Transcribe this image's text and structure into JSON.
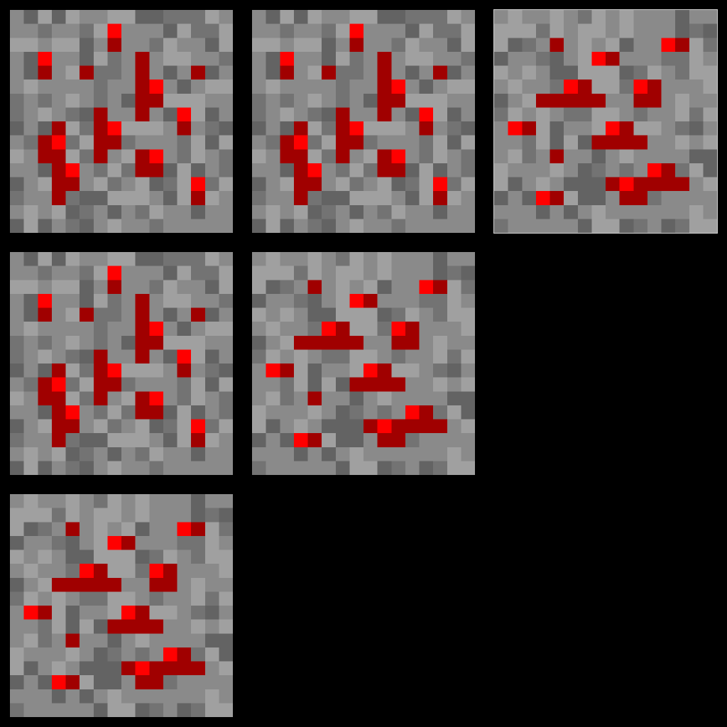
{
  "background_color": "#000000",
  "palette": {
    "light": "#a0a0a0",
    "mid": "#8a8a8a",
    "dark": "#737373",
    "darker": "#636363",
    "ore_bright": "#ff0000",
    "ore_dark": "#a00000"
  },
  "tiles": [
    {
      "name": "redstone-ore-texture-vertical",
      "variant": "vertical",
      "ore": [
        [
          7,
          1,
          "b"
        ],
        [
          7,
          2,
          "d"
        ],
        [
          2,
          3,
          "b"
        ],
        [
          2,
          4,
          "d"
        ],
        [
          5,
          4,
          "d"
        ],
        [
          9,
          3,
          "d"
        ],
        [
          9,
          4,
          "d"
        ],
        [
          13,
          4,
          "d"
        ],
        [
          9,
          5,
          "d"
        ],
        [
          10,
          5,
          "b"
        ],
        [
          9,
          6,
          "d"
        ],
        [
          10,
          6,
          "d"
        ],
        [
          9,
          7,
          "d"
        ],
        [
          6,
          7,
          "d"
        ],
        [
          12,
          7,
          "b"
        ],
        [
          6,
          8,
          "d"
        ],
        [
          7,
          8,
          "b"
        ],
        [
          12,
          8,
          "d"
        ],
        [
          3,
          8,
          "d"
        ],
        [
          2,
          9,
          "d"
        ],
        [
          3,
          9,
          "b"
        ],
        [
          6,
          9,
          "d"
        ],
        [
          7,
          9,
          "d"
        ],
        [
          2,
          10,
          "d"
        ],
        [
          3,
          10,
          "d"
        ],
        [
          6,
          10,
          "d"
        ],
        [
          9,
          10,
          "d"
        ],
        [
          10,
          10,
          "b"
        ],
        [
          3,
          11,
          "d"
        ],
        [
          4,
          11,
          "b"
        ],
        [
          9,
          11,
          "d"
        ],
        [
          10,
          11,
          "d"
        ],
        [
          3,
          12,
          "d"
        ],
        [
          4,
          12,
          "d"
        ],
        [
          13,
          12,
          "b"
        ],
        [
          3,
          13,
          "d"
        ],
        [
          13,
          13,
          "d"
        ]
      ]
    },
    {
      "name": "redstone-ore-texture-vertical-copy",
      "variant": "vertical",
      "ore": [
        [
          7,
          1,
          "b"
        ],
        [
          7,
          2,
          "d"
        ],
        [
          2,
          3,
          "b"
        ],
        [
          2,
          4,
          "d"
        ],
        [
          5,
          4,
          "d"
        ],
        [
          9,
          3,
          "d"
        ],
        [
          9,
          4,
          "d"
        ],
        [
          13,
          4,
          "d"
        ],
        [
          9,
          5,
          "d"
        ],
        [
          10,
          5,
          "b"
        ],
        [
          9,
          6,
          "d"
        ],
        [
          10,
          6,
          "d"
        ],
        [
          9,
          7,
          "d"
        ],
        [
          6,
          7,
          "d"
        ],
        [
          12,
          7,
          "b"
        ],
        [
          6,
          8,
          "d"
        ],
        [
          7,
          8,
          "b"
        ],
        [
          12,
          8,
          "d"
        ],
        [
          3,
          8,
          "d"
        ],
        [
          2,
          9,
          "d"
        ],
        [
          3,
          9,
          "b"
        ],
        [
          6,
          9,
          "d"
        ],
        [
          7,
          9,
          "d"
        ],
        [
          2,
          10,
          "d"
        ],
        [
          3,
          10,
          "d"
        ],
        [
          6,
          10,
          "d"
        ],
        [
          9,
          10,
          "d"
        ],
        [
          10,
          10,
          "b"
        ],
        [
          3,
          11,
          "d"
        ],
        [
          4,
          11,
          "b"
        ],
        [
          9,
          11,
          "d"
        ],
        [
          10,
          11,
          "d"
        ],
        [
          3,
          12,
          "d"
        ],
        [
          4,
          12,
          "d"
        ],
        [
          13,
          12,
          "b"
        ],
        [
          3,
          13,
          "d"
        ],
        [
          13,
          13,
          "d"
        ]
      ]
    },
    {
      "name": "redstone-ore-texture-horizontal",
      "variant": "horizontal",
      "ore": [
        [
          4,
          2,
          "d"
        ],
        [
          12,
          2,
          "b"
        ],
        [
          13,
          2,
          "d"
        ],
        [
          7,
          3,
          "b"
        ],
        [
          8,
          3,
          "d"
        ],
        [
          5,
          5,
          "b"
        ],
        [
          6,
          5,
          "d"
        ],
        [
          10,
          5,
          "b"
        ],
        [
          11,
          5,
          "d"
        ],
        [
          3,
          6,
          "d"
        ],
        [
          4,
          6,
          "d"
        ],
        [
          5,
          6,
          "d"
        ],
        [
          6,
          6,
          "d"
        ],
        [
          7,
          6,
          "d"
        ],
        [
          10,
          6,
          "d"
        ],
        [
          11,
          6,
          "d"
        ],
        [
          1,
          8,
          "b"
        ],
        [
          2,
          8,
          "d"
        ],
        [
          8,
          8,
          "b"
        ],
        [
          9,
          8,
          "d"
        ],
        [
          7,
          9,
          "d"
        ],
        [
          8,
          9,
          "d"
        ],
        [
          9,
          9,
          "d"
        ],
        [
          10,
          9,
          "d"
        ],
        [
          4,
          10,
          "d"
        ],
        [
          11,
          11,
          "b"
        ],
        [
          12,
          11,
          "d"
        ],
        [
          8,
          12,
          "d"
        ],
        [
          9,
          12,
          "b"
        ],
        [
          10,
          12,
          "d"
        ],
        [
          11,
          12,
          "d"
        ],
        [
          12,
          12,
          "d"
        ],
        [
          13,
          12,
          "d"
        ],
        [
          3,
          13,
          "b"
        ],
        [
          4,
          13,
          "d"
        ],
        [
          9,
          13,
          "d"
        ],
        [
          10,
          13,
          "d"
        ]
      ]
    },
    {
      "name": "redstone-ore-texture-vertical-second-copy",
      "variant": "vertical",
      "ore": [
        [
          7,
          1,
          "b"
        ],
        [
          7,
          2,
          "d"
        ],
        [
          2,
          3,
          "b"
        ],
        [
          2,
          4,
          "d"
        ],
        [
          5,
          4,
          "d"
        ],
        [
          9,
          3,
          "d"
        ],
        [
          9,
          4,
          "d"
        ],
        [
          13,
          4,
          "d"
        ],
        [
          9,
          5,
          "d"
        ],
        [
          10,
          5,
          "b"
        ],
        [
          9,
          6,
          "d"
        ],
        [
          10,
          6,
          "d"
        ],
        [
          9,
          7,
          "d"
        ],
        [
          6,
          7,
          "d"
        ],
        [
          12,
          7,
          "b"
        ],
        [
          6,
          8,
          "d"
        ],
        [
          7,
          8,
          "b"
        ],
        [
          12,
          8,
          "d"
        ],
        [
          3,
          8,
          "d"
        ],
        [
          2,
          9,
          "d"
        ],
        [
          3,
          9,
          "b"
        ],
        [
          6,
          9,
          "d"
        ],
        [
          7,
          9,
          "d"
        ],
        [
          2,
          10,
          "d"
        ],
        [
          3,
          10,
          "d"
        ],
        [
          6,
          10,
          "d"
        ],
        [
          9,
          10,
          "d"
        ],
        [
          10,
          10,
          "b"
        ],
        [
          3,
          11,
          "d"
        ],
        [
          4,
          11,
          "b"
        ],
        [
          9,
          11,
          "d"
        ],
        [
          10,
          11,
          "d"
        ],
        [
          3,
          12,
          "d"
        ],
        [
          4,
          12,
          "d"
        ],
        [
          13,
          12,
          "b"
        ],
        [
          3,
          13,
          "d"
        ],
        [
          13,
          13,
          "d"
        ]
      ]
    },
    {
      "name": "redstone-ore-texture-horizontal-copy",
      "variant": "horizontal",
      "ore": [
        [
          4,
          2,
          "d"
        ],
        [
          12,
          2,
          "b"
        ],
        [
          13,
          2,
          "d"
        ],
        [
          7,
          3,
          "b"
        ],
        [
          8,
          3,
          "d"
        ],
        [
          5,
          5,
          "b"
        ],
        [
          6,
          5,
          "d"
        ],
        [
          10,
          5,
          "b"
        ],
        [
          11,
          5,
          "d"
        ],
        [
          3,
          6,
          "d"
        ],
        [
          4,
          6,
          "d"
        ],
        [
          5,
          6,
          "d"
        ],
        [
          6,
          6,
          "d"
        ],
        [
          7,
          6,
          "d"
        ],
        [
          10,
          6,
          "d"
        ],
        [
          11,
          6,
          "d"
        ],
        [
          1,
          8,
          "b"
        ],
        [
          2,
          8,
          "d"
        ],
        [
          8,
          8,
          "b"
        ],
        [
          9,
          8,
          "d"
        ],
        [
          7,
          9,
          "d"
        ],
        [
          8,
          9,
          "d"
        ],
        [
          9,
          9,
          "d"
        ],
        [
          10,
          9,
          "d"
        ],
        [
          4,
          10,
          "d"
        ],
        [
          11,
          11,
          "b"
        ],
        [
          12,
          11,
          "d"
        ],
        [
          8,
          12,
          "d"
        ],
        [
          9,
          12,
          "b"
        ],
        [
          10,
          12,
          "d"
        ],
        [
          11,
          12,
          "d"
        ],
        [
          12,
          12,
          "d"
        ],
        [
          13,
          12,
          "d"
        ],
        [
          3,
          13,
          "b"
        ],
        [
          4,
          13,
          "d"
        ],
        [
          9,
          13,
          "d"
        ],
        [
          10,
          13,
          "d"
        ]
      ]
    },
    {
      "name": "redstone-ore-texture-horizontal-second-copy",
      "variant": "horizontal",
      "ore": [
        [
          4,
          2,
          "d"
        ],
        [
          12,
          2,
          "b"
        ],
        [
          13,
          2,
          "d"
        ],
        [
          7,
          3,
          "b"
        ],
        [
          8,
          3,
          "d"
        ],
        [
          5,
          5,
          "b"
        ],
        [
          6,
          5,
          "d"
        ],
        [
          10,
          5,
          "b"
        ],
        [
          11,
          5,
          "d"
        ],
        [
          3,
          6,
          "d"
        ],
        [
          4,
          6,
          "d"
        ],
        [
          5,
          6,
          "d"
        ],
        [
          6,
          6,
          "d"
        ],
        [
          7,
          6,
          "d"
        ],
        [
          10,
          6,
          "d"
        ],
        [
          11,
          6,
          "d"
        ],
        [
          1,
          8,
          "b"
        ],
        [
          2,
          8,
          "d"
        ],
        [
          8,
          8,
          "b"
        ],
        [
          9,
          8,
          "d"
        ],
        [
          7,
          9,
          "d"
        ],
        [
          8,
          9,
          "d"
        ],
        [
          9,
          9,
          "d"
        ],
        [
          10,
          9,
          "d"
        ],
        [
          4,
          10,
          "d"
        ],
        [
          11,
          11,
          "b"
        ],
        [
          12,
          11,
          "d"
        ],
        [
          8,
          12,
          "d"
        ],
        [
          9,
          12,
          "b"
        ],
        [
          10,
          12,
          "d"
        ],
        [
          11,
          12,
          "d"
        ],
        [
          12,
          12,
          "d"
        ],
        [
          13,
          12,
          "d"
        ],
        [
          3,
          13,
          "b"
        ],
        [
          4,
          13,
          "d"
        ],
        [
          9,
          13,
          "d"
        ],
        [
          10,
          13,
          "d"
        ]
      ]
    }
  ]
}
